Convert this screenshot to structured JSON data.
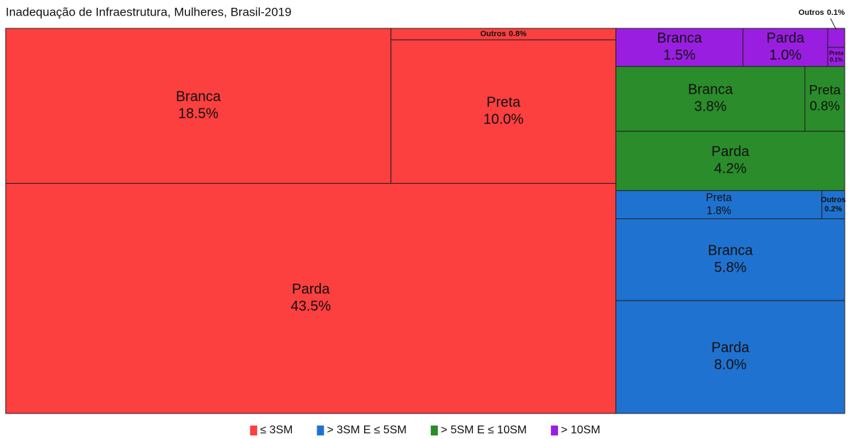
{
  "chart_data": {
    "type": "treemap",
    "title": "Inadequação de Infraestrutura, Mulheres, Brasil-2019",
    "groups": [
      {
        "name": "≤ 3SM",
        "color": "#fc3f3f",
        "labels": [
          "Branca",
          "Outros",
          "Preta",
          "Parda"
        ],
        "values": [
          18.5,
          0.8,
          10.0,
          43.5
        ],
        "value_labels": [
          "18.5%",
          "0.8%",
          "10.0%",
          "43.5%"
        ]
      },
      {
        "name": "> 3SM E ≤ 5SM",
        "color": "#1f72d0",
        "labels": [
          "Preta",
          "Outros",
          "Branca",
          "Parda"
        ],
        "values": [
          1.8,
          0.2,
          5.8,
          8.0
        ],
        "value_labels": [
          "1.8%",
          "0.2%",
          "5.8%",
          "8.0%"
        ]
      },
      {
        "name": "> 5SM E ≤ 10SM",
        "color": "#2a8c2a",
        "labels": [
          "Branca",
          "Preta",
          "Parda"
        ],
        "values": [
          3.8,
          0.8,
          4.2
        ],
        "value_labels": [
          "3.8%",
          "0.8%",
          "4.2%"
        ]
      },
      {
        "name": "> 10SM",
        "color": "#9a1ee0",
        "labels": [
          "Branca",
          "Parda",
          "Outros",
          "Preta"
        ],
        "values": [
          1.5,
          1.0,
          0.1,
          0.1
        ],
        "value_labels": [
          "1.5%",
          "1.0%",
          "0.1%",
          "0.1%"
        ]
      }
    ]
  }
}
